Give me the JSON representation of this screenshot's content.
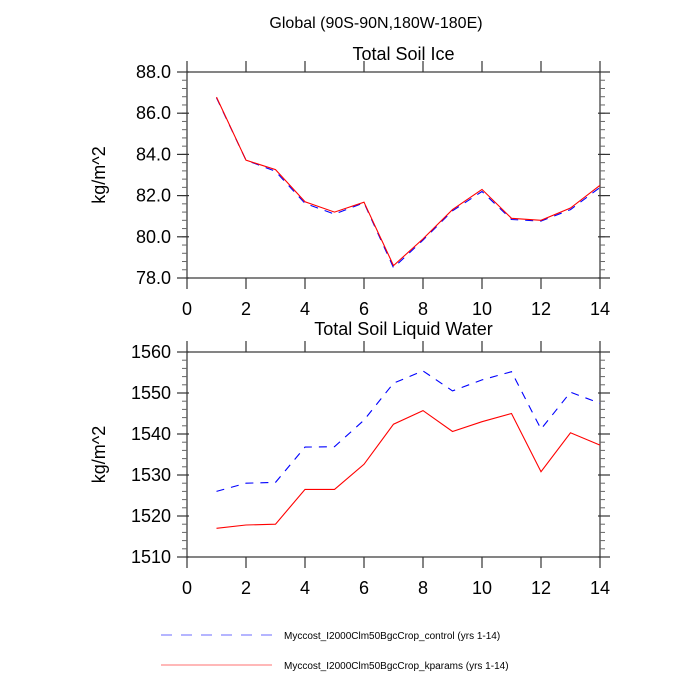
{
  "figure": {
    "main_title": "Global (90S-90N,180W-180E)"
  },
  "legend": {
    "placement": "bottom-center",
    "entries": [
      {
        "label": "Myccost_I2000Clm50BgcCrop_control (yrs 1-14)",
        "color": "#0000ff",
        "style": "dashed"
      },
      {
        "label": "Myccost_I2000Clm50BgcCrop_kparams (yrs 1-14)",
        "color": "#ff0000",
        "style": "solid"
      }
    ]
  },
  "chart_data": [
    {
      "type": "line",
      "title": "Total Soil Ice",
      "xlabel": "",
      "ylabel": "kg/m^2",
      "xlim": [
        0,
        14
      ],
      "ylim": [
        78.0,
        88.0
      ],
      "xticks": [
        0,
        2,
        4,
        6,
        8,
        10,
        12,
        14
      ],
      "xtick_labels": [
        "0",
        "2",
        "4",
        "6",
        "8",
        "10",
        "12",
        "14"
      ],
      "yticks": [
        78.0,
        80.0,
        82.0,
        84.0,
        86.0,
        88.0
      ],
      "ytick_labels": [
        "78.0",
        "80.0",
        "82.0",
        "84.0",
        "86.0",
        "88.0"
      ],
      "y_minor_step": 0.4,
      "grid": false,
      "x": [
        1,
        2,
        3,
        4,
        5,
        6,
        7,
        8,
        9,
        10,
        11,
        12,
        13,
        14
      ],
      "series": [
        {
          "name": "Myccost_I2000Clm50BgcCrop_control (yrs 1-14)",
          "color": "#0000ff",
          "style": "dashed",
          "values": [
            86.75,
            83.72,
            83.18,
            81.62,
            81.1,
            81.65,
            78.5,
            79.84,
            81.26,
            82.2,
            80.84,
            80.76,
            81.32,
            82.4
          ]
        },
        {
          "name": "Myccost_I2000Clm50BgcCrop_kparams (yrs 1-14)",
          "color": "#ff0000",
          "style": "solid",
          "values": [
            86.78,
            83.72,
            83.26,
            81.7,
            81.2,
            81.68,
            78.6,
            79.9,
            81.32,
            82.3,
            80.9,
            80.8,
            81.4,
            82.5
          ]
        }
      ]
    },
    {
      "type": "line",
      "title": "Total Soil Liquid Water",
      "xlabel": "",
      "ylabel": "kg/m^2",
      "xlim": [
        0,
        14
      ],
      "ylim": [
        1510,
        1560
      ],
      "xticks": [
        0,
        2,
        4,
        6,
        8,
        10,
        12,
        14
      ],
      "xtick_labels": [
        "0",
        "2",
        "4",
        "6",
        "8",
        "10",
        "12",
        "14"
      ],
      "yticks": [
        1510,
        1520,
        1530,
        1540,
        1550,
        1560
      ],
      "ytick_labels": [
        "1510",
        "1520",
        "1530",
        "1540",
        "1550",
        "1560"
      ],
      "y_minor_step": 2,
      "grid": false,
      "x": [
        1,
        2,
        3,
        4,
        5,
        6,
        7,
        8,
        9,
        10,
        11,
        12,
        13,
        14
      ],
      "series": [
        {
          "name": "Myccost_I2000Clm50BgcCrop_control (yrs 1-14)",
          "color": "#0000ff",
          "style": "dashed",
          "values": [
            1526.0,
            1528.0,
            1528.2,
            1536.8,
            1536.9,
            1543.4,
            1552.4,
            1555.4,
            1550.5,
            1553.2,
            1555.2,
            1541.2,
            1550.2,
            1547.5
          ]
        },
        {
          "name": "Myccost_I2000Clm50BgcCrop_kparams (yrs 1-14)",
          "color": "#ff0000",
          "style": "solid",
          "values": [
            1517.0,
            1517.8,
            1518.0,
            1526.5,
            1526.5,
            1532.6,
            1542.4,
            1545.7,
            1540.6,
            1543.0,
            1545.0,
            1530.8,
            1540.3,
            1537.3
          ]
        }
      ]
    }
  ]
}
